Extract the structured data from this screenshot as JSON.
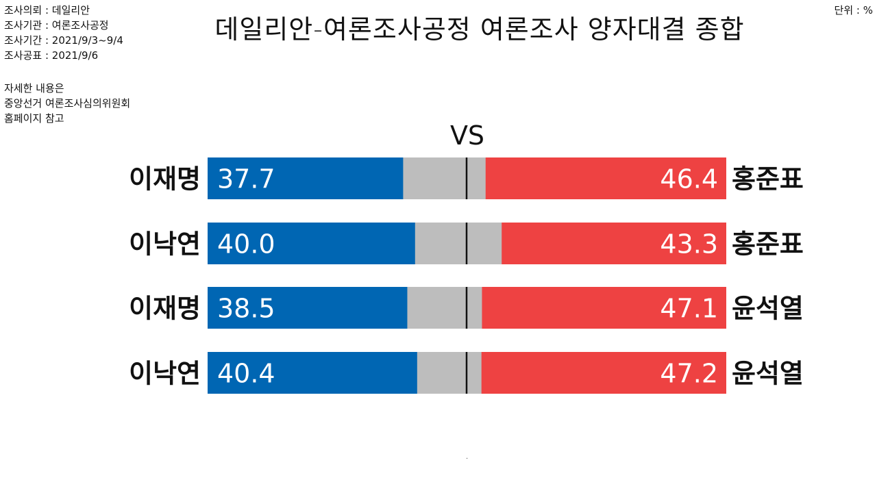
{
  "info": {
    "lines": [
      "조사의뢰 : 데일리안",
      "조사기관 : 여론조사공정",
      "조사기간 : 2021/9/3~9/4",
      "조사공표 : 2021/9/6"
    ],
    "note_lines": [
      "자세한 내용은",
      "중앙선거 여론조사심의위원회",
      "홈페이지 참고"
    ]
  },
  "unit_label": "단위 : %",
  "vs_label": "VS",
  "footnote": ".",
  "colors": {
    "left": "#0066B3",
    "right": "#EE4242",
    "undecided": "#BDBDBD",
    "center_line": "#111111"
  },
  "chart_data": {
    "type": "bar",
    "title": "데일리안-여론조사공정 여론조사 양자대결 종합",
    "xlim": [
      0,
      100
    ],
    "rows": [
      {
        "left_name": "이재명",
        "left_value": 37.7,
        "right_name": "홍준표",
        "right_value": 46.4
      },
      {
        "left_name": "이낙연",
        "left_value": 40.0,
        "right_name": "홍준표",
        "right_value": 43.3
      },
      {
        "left_name": "이재명",
        "left_value": 38.5,
        "right_name": "윤석열",
        "right_value": 47.1
      },
      {
        "left_name": "이낙연",
        "left_value": 40.4,
        "right_name": "윤석열",
        "right_value": 47.2
      }
    ]
  }
}
